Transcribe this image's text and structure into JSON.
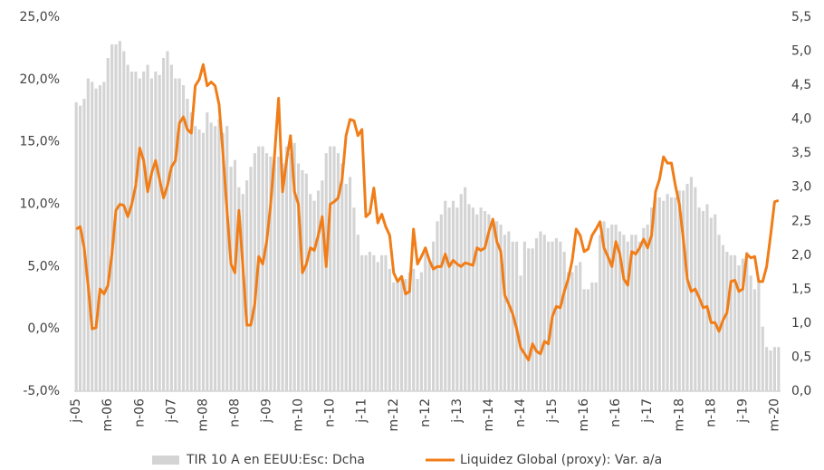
{
  "chart_data": {
    "type": "combo",
    "categories": [
      "j-05",
      null,
      null,
      null,
      null,
      null,
      null,
      null,
      "m-06",
      null,
      null,
      null,
      null,
      null,
      null,
      null,
      "n-06",
      null,
      null,
      null,
      null,
      null,
      null,
      null,
      "j-07",
      null,
      null,
      null,
      null,
      null,
      null,
      null,
      "m-08",
      null,
      null,
      null,
      null,
      null,
      null,
      null,
      "n-08",
      null,
      null,
      null,
      null,
      null,
      null,
      null,
      "j-09",
      null,
      null,
      null,
      null,
      null,
      null,
      null,
      "m-10",
      null,
      null,
      null,
      null,
      null,
      null,
      null,
      "n-10",
      null,
      null,
      null,
      null,
      null,
      null,
      null,
      "j-11",
      null,
      null,
      null,
      null,
      null,
      null,
      null,
      "m-12",
      null,
      null,
      null,
      null,
      null,
      null,
      null,
      "n-12",
      null,
      null,
      null,
      null,
      null,
      null,
      null,
      "j-13",
      null,
      null,
      null,
      null,
      null,
      null,
      null,
      "m-14",
      null,
      null,
      null,
      null,
      null,
      null,
      null,
      "n-14",
      null,
      null,
      null,
      null,
      null,
      null,
      null,
      "j-15",
      null,
      null,
      null,
      null,
      null,
      null,
      null,
      "m-16",
      null,
      null,
      null,
      null,
      null,
      null,
      null,
      "n-16",
      null,
      null,
      null,
      null,
      null,
      null,
      null,
      "j-17",
      null,
      null,
      null,
      null,
      null,
      null,
      null,
      "m-18",
      null,
      null,
      null,
      null,
      null,
      null,
      null,
      "n-18",
      null,
      null,
      null,
      null,
      null,
      null,
      null,
      "j-19",
      null,
      null,
      null,
      null,
      null,
      null,
      null,
      "m-20",
      null
    ],
    "series": [
      {
        "name": "TIR 10 A en EEUU:Esc: Dcha",
        "type": "bar",
        "axis": "y2",
        "color": "#d4d4d4",
        "values": [
          4.25,
          4.2,
          4.3,
          4.6,
          4.55,
          4.45,
          4.5,
          4.55,
          4.9,
          5.1,
          5.1,
          5.15,
          5.0,
          4.8,
          4.7,
          4.7,
          4.6,
          4.7,
          4.8,
          4.6,
          4.7,
          4.65,
          4.9,
          5.0,
          4.8,
          4.6,
          4.6,
          4.5,
          4.3,
          4.1,
          3.9,
          3.85,
          3.8,
          4.1,
          3.95,
          3.9,
          4.0,
          3.8,
          3.9,
          3.3,
          3.4,
          3.0,
          2.9,
          3.1,
          3.3,
          3.5,
          3.6,
          3.6,
          3.5,
          3.45,
          3.4,
          3.45,
          3.35,
          3.6,
          3.5,
          3.65,
          3.35,
          3.25,
          3.2,
          2.9,
          2.8,
          2.95,
          3.1,
          3.5,
          3.6,
          3.6,
          3.5,
          3.35,
          3.05,
          3.15,
          2.7,
          2.3,
          2.0,
          2.0,
          2.05,
          2.0,
          1.9,
          2.0,
          2.0,
          1.8,
          1.6,
          1.6,
          1.7,
          1.65,
          1.75,
          1.8,
          1.65,
          1.75,
          2.05,
          1.95,
          2.2,
          2.5,
          2.6,
          2.8,
          2.7,
          2.8,
          2.7,
          2.9,
          3.0,
          2.75,
          2.7,
          2.6,
          2.7,
          2.65,
          2.6,
          2.5,
          2.5,
          2.45,
          2.3,
          2.35,
          2.2,
          2.2,
          1.7,
          2.2,
          2.1,
          2.1,
          2.25,
          2.35,
          2.3,
          2.2,
          2.2,
          2.25,
          2.2,
          2.05,
          1.75,
          1.75,
          1.85,
          1.9,
          1.5,
          1.5,
          1.6,
          1.6,
          2.3,
          2.5,
          2.4,
          2.45,
          2.45,
          2.35,
          2.3,
          2.2,
          2.3,
          2.3,
          2.2,
          2.4,
          2.45,
          2.7,
          2.85,
          2.85,
          2.8,
          2.9,
          2.85,
          2.85,
          2.95,
          2.95,
          3.05,
          3.15,
          3.0,
          2.7,
          2.65,
          2.75,
          2.55,
          2.6,
          2.3,
          2.15,
          2.05,
          2.0,
          2.0,
          1.85,
          1.95,
          2.05,
          1.7,
          1.5,
          1.6,
          0.95,
          0.65,
          0.6,
          0.65,
          0.65
        ]
      },
      {
        "name": "Liquidez Global (proxy): Var. a/a",
        "type": "line",
        "color": "#f07d18",
        "values": [
          8.0,
          8.2,
          6.5,
          3.5,
          0.0,
          0.1,
          3.2,
          2.8,
          3.5,
          6.0,
          9.5,
          10.0,
          9.9,
          9.0,
          10.0,
          11.5,
          14.5,
          13.5,
          11.0,
          12.5,
          13.5,
          12.0,
          10.5,
          11.5,
          13.0,
          13.5,
          16.5,
          17.0,
          16.0,
          15.7,
          19.5,
          20.0,
          21.2,
          19.5,
          19.8,
          19.5,
          18.0,
          14.0,
          9.5,
          5.2,
          4.5,
          9.5,
          5.0,
          0.3,
          0.3,
          2.0,
          5.8,
          5.2,
          7.0,
          10.0,
          14.0,
          18.5,
          11.0,
          13.5,
          15.5,
          11.0,
          10.0,
          4.5,
          5.2,
          6.5,
          6.3,
          7.5,
          9.0,
          5.0,
          10.0,
          10.2,
          10.5,
          12.0,
          15.5,
          16.8,
          16.7,
          15.5,
          16.0,
          9.0,
          9.3,
          11.3,
          8.5,
          9.2,
          8.2,
          7.5,
          4.5,
          3.8,
          4.2,
          2.8,
          3.0,
          8.0,
          5.2,
          5.8,
          6.5,
          5.5,
          4.8,
          5.0,
          5.0,
          6.0,
          5.0,
          5.5,
          5.2,
          5.0,
          5.3,
          5.2,
          5.1,
          6.5,
          6.3,
          6.5,
          7.8,
          8.8,
          7.0,
          6.2,
          2.7,
          2.0,
          1.2,
          0.0,
          -1.5,
          -2.0,
          -2.5,
          -1.2,
          -1.8,
          -2.0,
          -1.0,
          -1.2,
          1.0,
          1.8,
          1.7,
          3.0,
          4.0,
          5.5,
          8.0,
          7.5,
          6.2,
          6.4,
          7.5,
          8.0,
          8.6,
          6.5,
          5.8,
          5.0,
          7.0,
          6.0,
          4.0,
          3.5,
          6.2,
          6.0,
          6.5,
          7.2,
          6.5,
          7.5,
          11.0,
          12.0,
          13.8,
          13.3,
          13.3,
          11.5,
          10.0,
          7.2,
          4.0,
          3.0,
          3.2,
          2.5,
          1.7,
          1.8,
          0.5,
          0.5,
          -0.2,
          0.7,
          1.3,
          3.8,
          3.9,
          3.0,
          3.2,
          6.0,
          5.7,
          5.8,
          3.8,
          3.8,
          5.0,
          7.5,
          10.2,
          10.3
        ]
      }
    ],
    "ylim": [
      -5,
      25
    ],
    "yticks": [
      {
        "value": -5,
        "label": "-5,0%"
      },
      {
        "value": 0,
        "label": "0,0%"
      },
      {
        "value": 5,
        "label": "5,0%"
      },
      {
        "value": 10,
        "label": "10,0%"
      },
      {
        "value": 15,
        "label": "15,0%"
      },
      {
        "value": 20,
        "label": "20,0%"
      },
      {
        "value": 25,
        "label": "25,0%"
      }
    ],
    "y2lim": [
      0,
      5.5
    ],
    "y2ticks": [
      {
        "value": 0,
        "label": "0,0"
      },
      {
        "value": 0.5,
        "label": "0,5"
      },
      {
        "value": 1,
        "label": "1,0"
      },
      {
        "value": 1.5,
        "label": "1,5"
      },
      {
        "value": 2,
        "label": "2,0"
      },
      {
        "value": 2.5,
        "label": "2,5"
      },
      {
        "value": 3,
        "label": "3,0"
      },
      {
        "value": 3.5,
        "label": "3,5"
      },
      {
        "value": 4,
        "label": "4,0"
      },
      {
        "value": 4.5,
        "label": "4,5"
      },
      {
        "value": 5,
        "label": "5,0"
      },
      {
        "value": 5.5,
        "label": "5,5"
      }
    ],
    "grid": false,
    "legend": "bottom"
  }
}
